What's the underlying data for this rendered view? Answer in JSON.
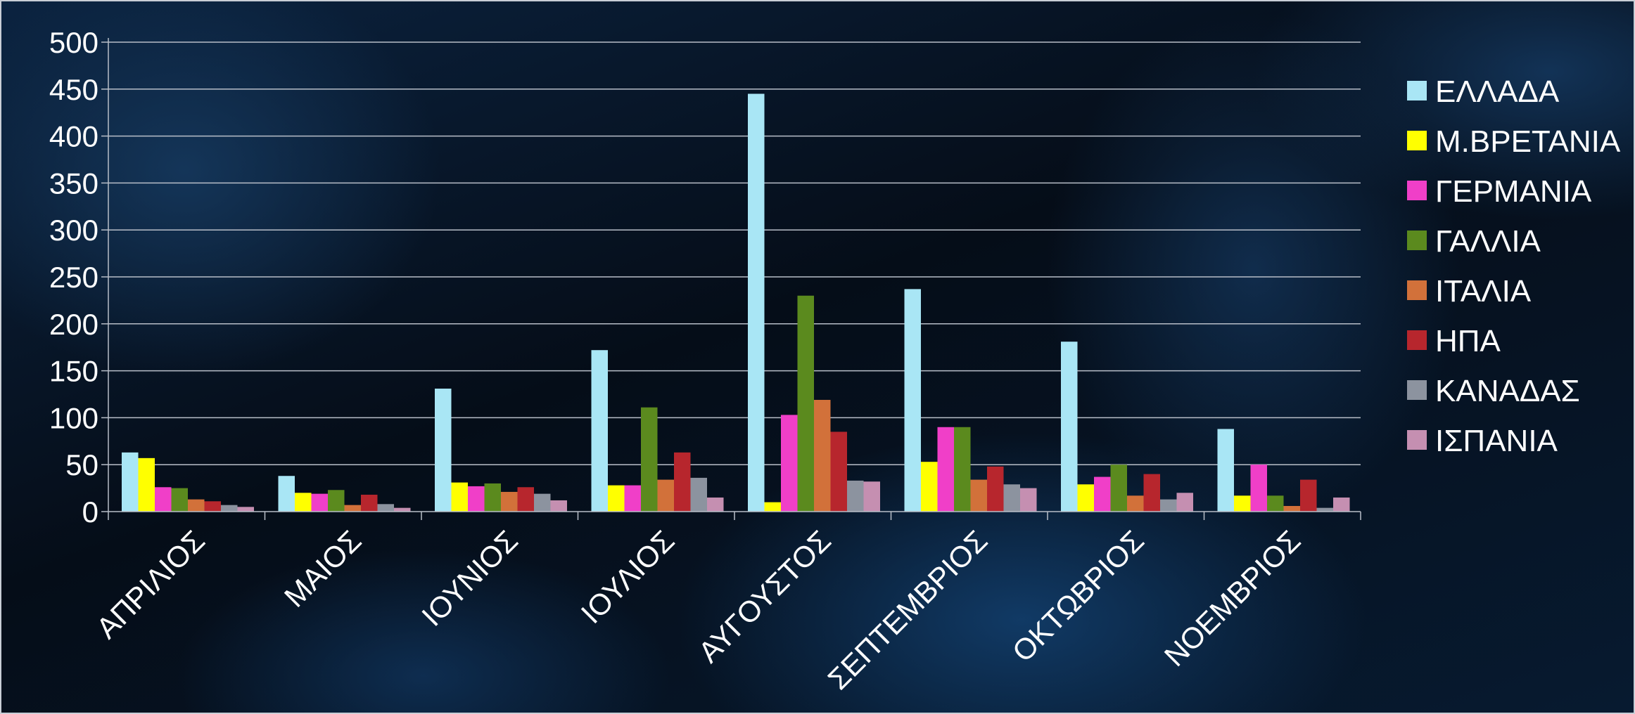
{
  "chart_data": {
    "type": "bar",
    "title": "",
    "xlabel": "",
    "ylabel": "",
    "ylim": [
      0,
      500
    ],
    "yticks": [
      0,
      50,
      100,
      150,
      200,
      250,
      300,
      350,
      400,
      450,
      500
    ],
    "grid": true,
    "legend_position": "right",
    "categories": [
      "ΑΠΡΙΛΙΟΣ",
      "ΜΑΙΟΣ",
      "ΙΟΥΝΙΟΣ",
      "ΙΟΥΛΙΟΣ",
      "ΑΥΓΟΥΣΤΟΣ",
      "ΣΕΠΤΕΜΒΡΙΟΣ",
      "ΟΚΤΩΒΡΙΟΣ",
      "ΝΟΕΜΒΡΙΟΣ"
    ],
    "series": [
      {
        "name": "ΕΛΛΑΔΑ",
        "color": "#a9e6f5",
        "values": [
          63,
          38,
          131,
          172,
          445,
          237,
          181,
          88
        ]
      },
      {
        "name": "Μ.ΒΡΕΤΑΝΙΑ",
        "color": "#ffff00",
        "values": [
          57,
          20,
          31,
          28,
          10,
          53,
          29,
          17
        ]
      },
      {
        "name": "ΓΕΡΜΑΝΙΑ",
        "color": "#f03fc8",
        "values": [
          26,
          19,
          27,
          28,
          103,
          90,
          37,
          50
        ]
      },
      {
        "name": "ΓΑΛΛΙΑ",
        "color": "#5b8a1e",
        "values": [
          25,
          23,
          30,
          111,
          230,
          90,
          50,
          17
        ]
      },
      {
        "name": "ΙΤΑΛΙΑ",
        "color": "#d2713a",
        "values": [
          13,
          7,
          21,
          34,
          119,
          34,
          17,
          6
        ]
      },
      {
        "name": "ΗΠΑ",
        "color": "#b7262d",
        "values": [
          11,
          18,
          26,
          63,
          85,
          48,
          40,
          34
        ]
      },
      {
        "name": "ΚΑΝΑΔΑΣ",
        "color": "#8c939f",
        "values": [
          7,
          8,
          19,
          36,
          33,
          29,
          13,
          4
        ]
      },
      {
        "name": "ΙΣΠΑΝΙΑ",
        "color": "#c58fb1",
        "values": [
          5,
          4,
          12,
          15,
          32,
          25,
          20,
          15
        ]
      }
    ]
  }
}
